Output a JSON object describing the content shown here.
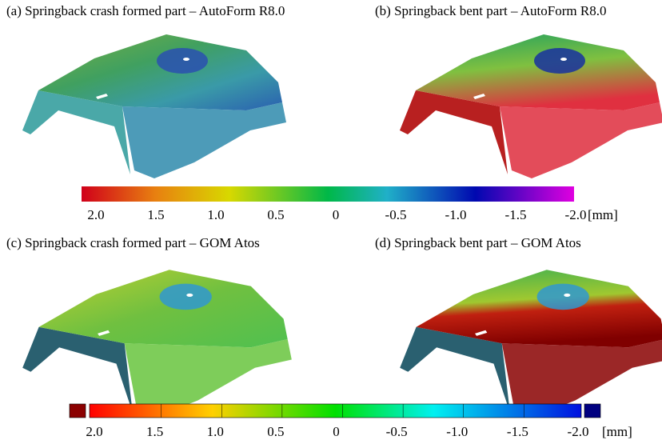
{
  "panels": [
    {
      "caption": "(a) Springback crash formed part – AutoForm R8.0"
    },
    {
      "caption": "(b) Springback bent part – AutoForm R8.0"
    },
    {
      "caption": "(c) Springback crash formed part – GOM Atos"
    },
    {
      "caption": "(d) Springback bent part – GOM Atos"
    }
  ],
  "colorbars": [
    {
      "ticks": [
        "2.0",
        "1.5",
        "1.0",
        "0.5",
        "0",
        "-0.5",
        "-1.0",
        "-1.5",
        "-2.0"
      ],
      "unit": "[mm]"
    },
    {
      "ticks": [
        "2.0",
        "1.5",
        "1.0",
        "0.5",
        "0",
        "-0.5",
        "-1.0",
        "-1.5",
        "-2.0"
      ],
      "unit": "[mm]"
    }
  ]
}
